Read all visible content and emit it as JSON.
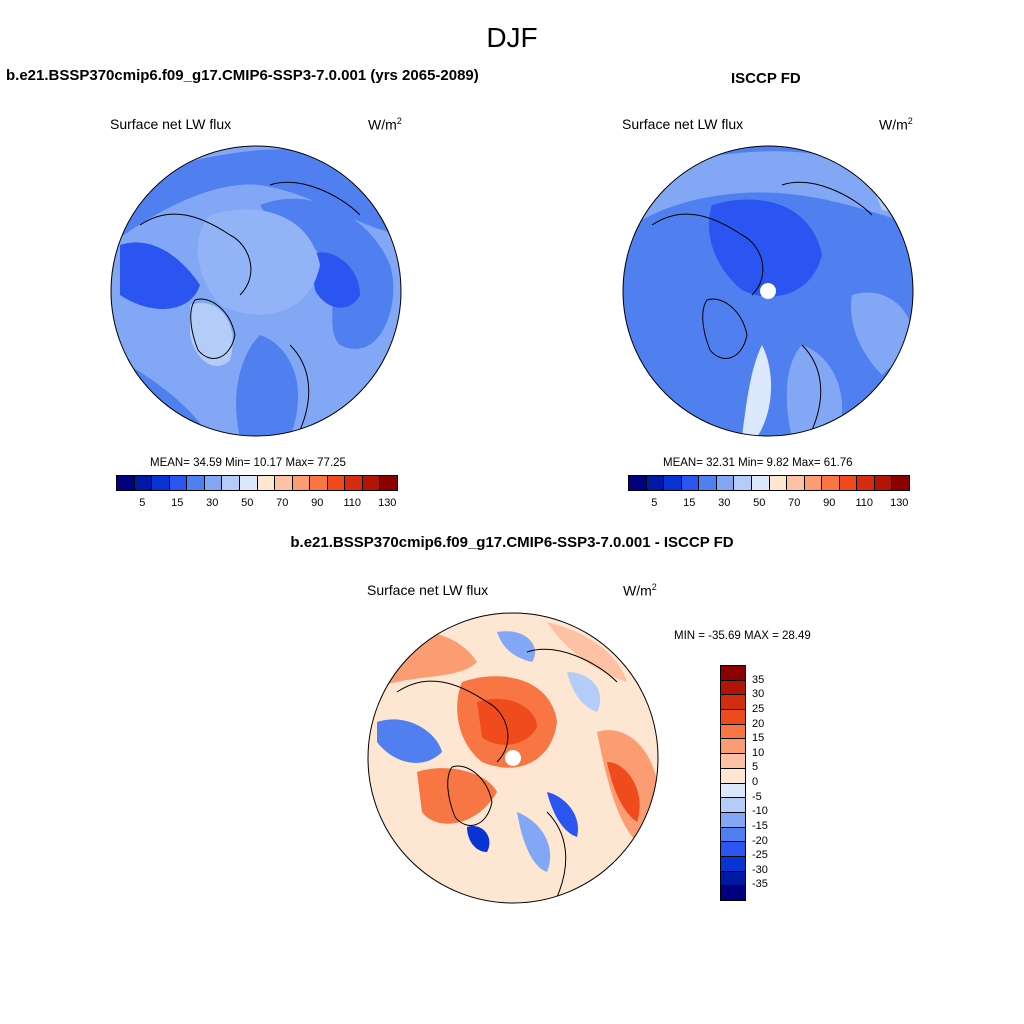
{
  "figure": {
    "season": "DJF"
  },
  "panel_model": {
    "title": "b.e21.BSSP370cmip6.f09_g17.CMIP6-SSP3-7.0.001 (yrs 2065-2089)",
    "variable": "Surface net LW flux",
    "units": "W/m",
    "units_exp": "2",
    "stats": "MEAN=  34.59  Min=  10.17  Max=  77.25"
  },
  "panel_obs": {
    "title": "ISCCP FD",
    "variable": "Surface net LW flux",
    "units": "W/m",
    "units_exp": "2",
    "stats": "MEAN=  32.31  Min=   9.82  Max=  61.76"
  },
  "panel_diff": {
    "title": "b.e21.BSSP370cmip6.f09_g17.CMIP6-SSP3-7.0.001 - ISCCP FD",
    "variable": "Surface net LW flux",
    "units": "W/m",
    "units_exp": "2",
    "stats": "MIN = -35.69 MAX =  28.49"
  },
  "colorbar_main": {
    "ticks": [
      "5",
      "15",
      "30",
      "50",
      "70",
      "90",
      "110",
      "130"
    ],
    "colors": [
      "#000080",
      "#0019a3",
      "#0834d6",
      "#2a55f0",
      "#5080f0",
      "#82a8f5",
      "#b4cdf8",
      "#dce9fc",
      "#fde6d2",
      "#fcc2a3",
      "#fb9c73",
      "#f87544",
      "#f04b1d",
      "#d42c0e",
      "#b01505",
      "#8b0000"
    ]
  },
  "colorbar_diff": {
    "ticks": [
      "35",
      "30",
      "25",
      "20",
      "15",
      "10",
      "5",
      "0",
      "-5",
      "-10",
      "-15",
      "-20",
      "-25",
      "-30",
      "-35"
    ],
    "colors": [
      "#8b0000",
      "#b01505",
      "#d42c0e",
      "#f04b1d",
      "#f87544",
      "#fb9c73",
      "#fcc2a3",
      "#fde6d2",
      "#dce9fc",
      "#b4cdf8",
      "#82a8f5",
      "#5080f0",
      "#2a55f0",
      "#0834d6",
      "#0019a3",
      "#000080"
    ]
  }
}
